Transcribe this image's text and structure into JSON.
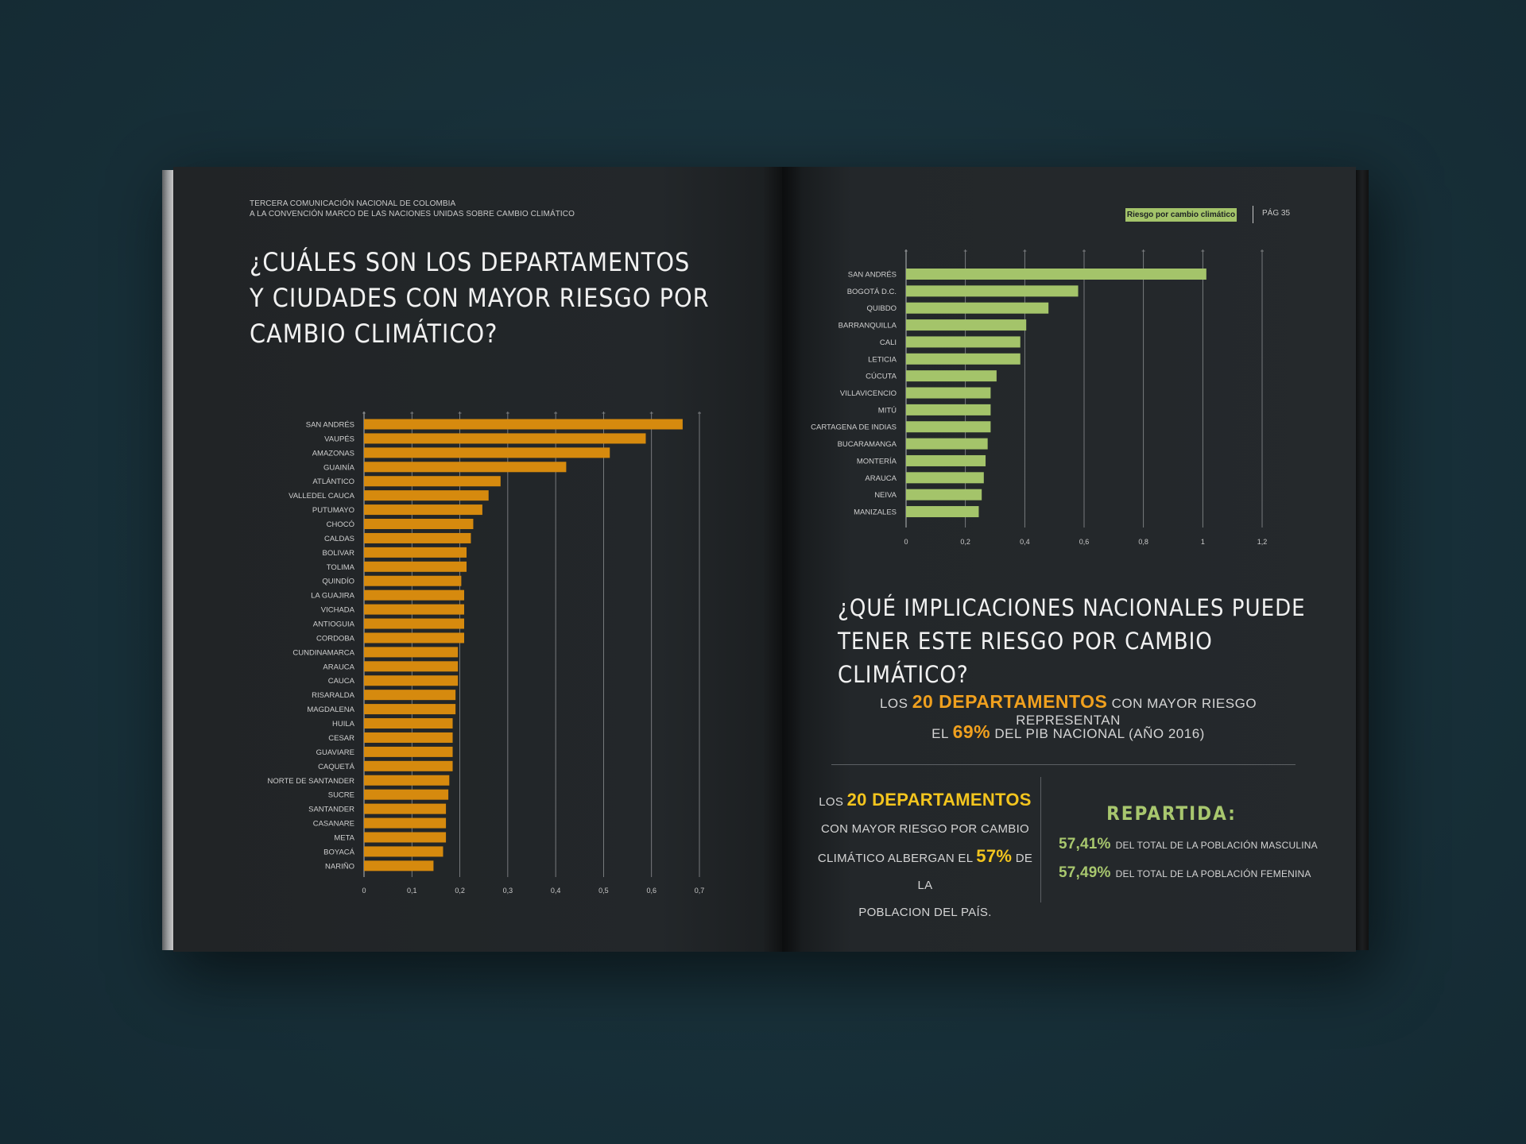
{
  "left_page": {
    "header_line1": "TERCERA COMUNICACIÓN NACIONAL DE COLOMBIA",
    "header_line2": "A LA CONVENCIÓN MARCO DE LAS NACIONES UNIDAS SOBRE CAMBIO CLIMÁTICO",
    "title_line1": "¿CUÁLES SON LOS DEPARTAMENTOS",
    "title_line2": "Y CIUDADES CON MAYOR RIESGO POR",
    "title_line3": "CAMBIO CLIMÁTICO?"
  },
  "right_page": {
    "tag": "Riesgo por cambio climático",
    "page_number": "PÁG 35",
    "title_line1": "¿QUÉ IMPLICACIONES NACIONALES PUEDE",
    "title_line2": "TENER ESTE RIESGO POR CAMBIO CLIMÁTICO?",
    "stat1": {
      "pre": "LOS ",
      "highlight": "20 DEPARTAMENTOS",
      "post": " CON MAYOR RIESGO REPRESENTAN"
    },
    "stat2": {
      "pre": "EL ",
      "highlight": "69%",
      "post": " DEL PIB NACIONAL (AÑO 2016)"
    },
    "block": {
      "pre": "LOS ",
      "highlight1": "20 DEPARTAMENTOS",
      "line2": "CON MAYOR RIESGO POR CAMBIO",
      "line3_pre": "CLIMÁTICO ALBERGAN EL ",
      "highlight2": "57%",
      "line3_post": " DE LA",
      "line4": "POBLACION DEL PAÍS."
    },
    "repartida": {
      "title": "REPARTIDA:",
      "male_pct": "57,41%",
      "male_text": "DEL TOTAL DE LA POBLACIÓN MASCULINA",
      "female_pct": "57,49%",
      "female_text": "DEL TOTAL DE LA POBLACIÓN FEMENINA"
    }
  },
  "colors": {
    "orange_bar": "#d68a0e",
    "green_bar": "#a4c46a",
    "highlight_orange": "#f0a01e",
    "highlight_yellow": "#f3c51e",
    "highlight_green": "#a8c76e"
  },
  "chart_data": [
    {
      "type": "bar",
      "orientation": "horizontal",
      "categories": [
        "SAN ANDRÉS",
        "VAUPÉS",
        "AMAZONAS",
        "GUAINÍA",
        "ATLÁNTICO",
        "VALLEDEL CAUCA",
        "PUTUMAYO",
        "CHOCÓ",
        "CALDAS",
        "BOLIVAR",
        "TOLIMA",
        "QUINDÍO",
        "LA GUAJIRA",
        "VICHADA",
        "ANTIOGUIA",
        "CORDOBA",
        "CUNDINAMARCA",
        "ARAUCA",
        "CAUCA",
        "RISARALDA",
        "MAGDALENA",
        "HUILA",
        "CESAR",
        "GUAVIARE",
        "CAQUETÁ",
        "NORTE DE SANTANDER",
        "SUCRE",
        "SANTANDER",
        "CASANARE",
        "META",
        "BOYACÁ",
        "NARIÑO"
      ],
      "values": [
        0.665,
        0.588,
        0.513,
        0.422,
        0.285,
        0.26,
        0.247,
        0.228,
        0.223,
        0.214,
        0.214,
        0.203,
        0.209,
        0.209,
        0.209,
        0.209,
        0.196,
        0.196,
        0.196,
        0.191,
        0.191,
        0.185,
        0.185,
        0.185,
        0.185,
        0.178,
        0.176,
        0.171,
        0.171,
        0.171,
        0.165,
        0.145
      ],
      "xticks": [
        "0",
        "0,1",
        "0,2",
        "0,3",
        "0,4",
        "0,5",
        "0,6",
        "0,7"
      ],
      "xlim": [
        0,
        0.7
      ],
      "grid": true
    },
    {
      "type": "bar",
      "orientation": "horizontal",
      "categories": [
        "SAN ANDRÉS",
        "BOGOTÁ D.C.",
        "QUIBDO",
        "BARRANQUILLA",
        "CALI",
        "LETICIA",
        "CÚCUTA",
        "VILLAVICENCIO",
        "MITÚ",
        "CARTAGENA DE INDIAS",
        "BUCARAMANGA",
        "MONTERÍA",
        "ARAUCA",
        "NEIVA",
        "MANIZALES"
      ],
      "values": [
        1.012,
        0.58,
        0.48,
        0.405,
        0.385,
        0.385,
        0.305,
        0.285,
        0.285,
        0.285,
        0.275,
        0.268,
        0.262,
        0.255,
        0.245
      ],
      "xticks": [
        "0",
        "0,2",
        "0,4",
        "0,6",
        "0,8",
        "1",
        "1,2"
      ],
      "xlim": [
        0,
        1.2
      ],
      "grid": true
    }
  ]
}
